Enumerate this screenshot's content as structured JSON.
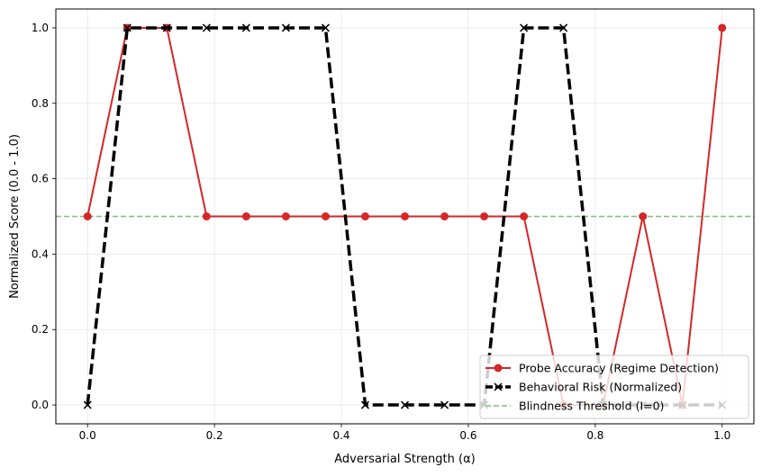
{
  "chart_data": {
    "type": "line",
    "xlabel": "Adversarial Strength (α)",
    "ylabel": "Normalized Score (0.0 - 1.0)",
    "xlim": [
      -0.05,
      1.05
    ],
    "ylim": [
      -0.05,
      1.05
    ],
    "xticks": [
      "0.0",
      "0.2",
      "0.4",
      "0.6",
      "0.8",
      "1.0"
    ],
    "yticks": [
      "0.0",
      "0.2",
      "0.4",
      "0.6",
      "0.8",
      "1.0"
    ],
    "grid": true,
    "legend_position": "lower-right",
    "x": [
      0.0,
      0.0625,
      0.125,
      0.1875,
      0.25,
      0.3125,
      0.375,
      0.4375,
      0.5,
      0.5625,
      0.625,
      0.6875,
      0.75,
      0.8125,
      0.875,
      0.9375,
      1.0
    ],
    "series": [
      {
        "name": "Probe Accuracy (Regime Detection)",
        "color": "#d62728",
        "marker": "circle",
        "style": "solid",
        "values": [
          0.5,
          1.0,
          1.0,
          0.5,
          0.5,
          0.5,
          0.5,
          0.5,
          0.5,
          0.5,
          0.5,
          0.5,
          0.0,
          0.0,
          0.5,
          0.0,
          1.0
        ]
      },
      {
        "name": "Behavioral Risk (Normalized)",
        "color": "#000000",
        "marker": "x",
        "style": "dashed",
        "values": [
          0.0,
          1.0,
          1.0,
          1.0,
          1.0,
          1.0,
          1.0,
          0.0,
          0.0,
          0.0,
          0.0,
          1.0,
          1.0,
          0.0,
          0.0,
          0.0,
          0.0
        ]
      }
    ],
    "reference_line": {
      "name": "Blindness Threshold (I=0)",
      "y": 0.5,
      "color": "#7fbf7f",
      "style": "dashed"
    }
  }
}
